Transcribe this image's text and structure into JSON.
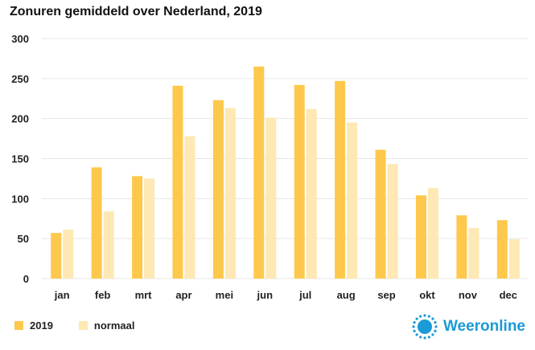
{
  "title": "Zonuren gemiddeld over Nederland, 2019",
  "colors": {
    "series_2019": "#fec84d",
    "series_normaal": "#fee8b3",
    "brand": "#1a9ad6",
    "grid": "#e6e6e6"
  },
  "brand": {
    "name": "Weeronline",
    "icon": "sun-logo-icon"
  },
  "chart_data": {
    "type": "bar",
    "title": "Zonuren gemiddeld over Nederland, 2019",
    "xlabel": "",
    "ylabel": "",
    "ylim": [
      0,
      300
    ],
    "yticks": [
      0,
      50,
      100,
      150,
      200,
      250,
      300
    ],
    "grid": true,
    "legend_position": "bottom-left",
    "categories": [
      "jan",
      "feb",
      "mrt",
      "apr",
      "mei",
      "jun",
      "jul",
      "aug",
      "sep",
      "okt",
      "nov",
      "dec"
    ],
    "series": [
      {
        "name": "2019",
        "color": "#fec84d",
        "values": [
          57,
          139,
          128,
          241,
          223,
          265,
          242,
          247,
          161,
          104,
          79,
          73
        ]
      },
      {
        "name": "normaal",
        "color": "#fee8b3",
        "values": [
          61,
          84,
          125,
          178,
          213,
          201,
          212,
          195,
          143,
          113,
          63,
          49
        ]
      }
    ]
  }
}
